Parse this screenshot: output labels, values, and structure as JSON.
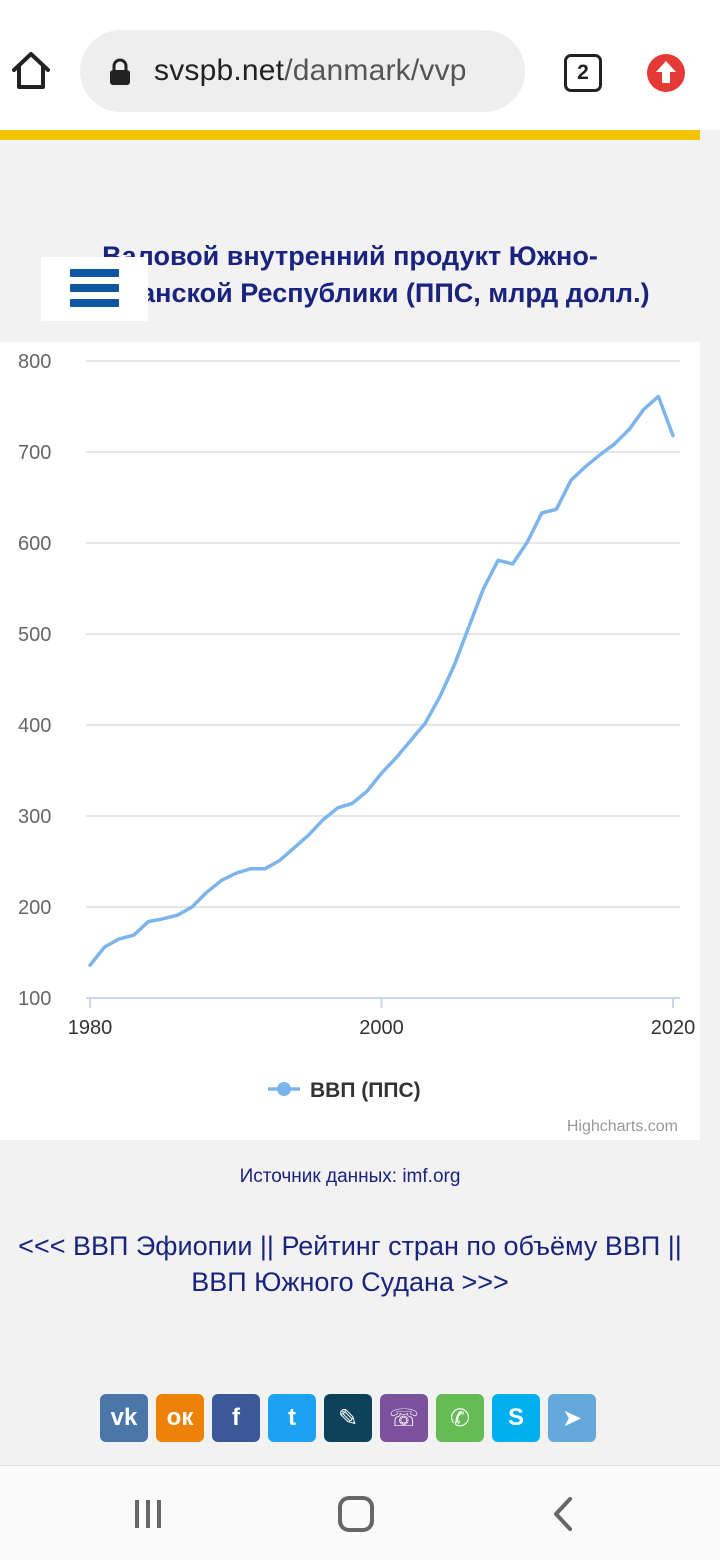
{
  "browser": {
    "url_domain": "svspb.net",
    "url_path": "/danmark/vvp",
    "tab_count": "2",
    "accent_color": "#f4c400"
  },
  "page": {
    "chart_title_line1": "Валовой внутренний продукт Южно-",
    "chart_title_line2": "Африканской Республики (ППС, млрд долл.)",
    "source_label": "Источник данных: imf.org",
    "nav_prev": "<<< ВВП Эфиопии",
    "nav_sep": " || ",
    "nav_rating": "Рейтинг стран по объёму ВВП",
    "nav_next": "ВВП Южного Судана >>>",
    "menu_icon": "hamburger-menu-icon"
  },
  "share_buttons": [
    {
      "name": "vk",
      "label": "vk",
      "color": "#4a76a8"
    },
    {
      "name": "odnoklassniki",
      "label": "ок",
      "color": "#ee8208"
    },
    {
      "name": "facebook",
      "label": "f",
      "color": "#3b5998"
    },
    {
      "name": "twitter",
      "label": "t",
      "color": "#1da1f2"
    },
    {
      "name": "livejournal",
      "label": "✎",
      "color": "#0d425a"
    },
    {
      "name": "viber",
      "label": "☏",
      "color": "#7b519d"
    },
    {
      "name": "whatsapp",
      "label": "✆",
      "color": "#65bc54"
    },
    {
      "name": "skype",
      "label": "S",
      "color": "#00aff0"
    },
    {
      "name": "telegram",
      "label": "➤",
      "color": "#64a9dc"
    }
  ],
  "chart_data": {
    "type": "line",
    "title": "Валовой внутренний продукт Южно-Африканской Республики (ППС, млрд долл.)",
    "xlabel": "",
    "ylabel": "",
    "xlim": [
      1980,
      2020
    ],
    "ylim": [
      100,
      800
    ],
    "yticks": [
      100,
      200,
      300,
      400,
      500,
      600,
      700,
      800
    ],
    "xticks": [
      1980,
      2000,
      2020
    ],
    "grid": true,
    "legend_position": "bottom",
    "credits": "Highcharts.com",
    "series": [
      {
        "name": "ВВП (ППС)",
        "color": "#7cb5ec",
        "x": [
          1980,
          1981,
          1982,
          1983,
          1984,
          1985,
          1986,
          1987,
          1988,
          1989,
          1990,
          1991,
          1992,
          1993,
          1994,
          1995,
          1996,
          1997,
          1998,
          1999,
          2000,
          2001,
          2002,
          2003,
          2004,
          2005,
          2006,
          2007,
          2008,
          2009,
          2010,
          2011,
          2012,
          2013,
          2014,
          2015,
          2016,
          2017,
          2018,
          2019,
          2020
        ],
        "values": [
          136,
          156,
          165,
          169,
          184,
          187,
          191,
          200,
          216,
          229,
          237,
          242,
          242,
          251,
          265,
          279,
          296,
          309,
          314,
          327,
          347,
          364,
          383,
          402,
          431,
          466,
          508,
          550,
          581,
          577,
          601,
          633,
          637,
          669,
          684,
          697,
          709,
          725,
          747,
          761,
          718
        ]
      }
    ]
  }
}
